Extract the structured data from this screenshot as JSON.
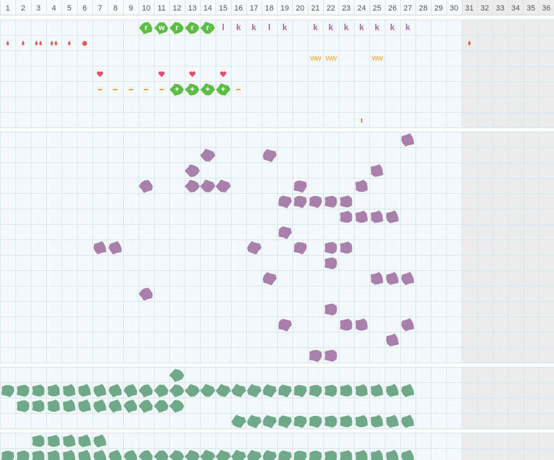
{
  "day_labels": [
    "1",
    "2",
    "3",
    "4",
    "5",
    "6",
    "7",
    "8",
    "9",
    "10",
    "11",
    "12",
    "13",
    "14",
    "15",
    "16",
    "17",
    "18",
    "19",
    "20",
    "21",
    "22",
    "23",
    "24",
    "25",
    "26",
    "27",
    "28",
    "29",
    "30",
    "31",
    "32",
    "33",
    "34",
    "35",
    "36"
  ],
  "shaded_from_day": 31,
  "sections": [
    {
      "rows": [
        {
          "cells": [
            {
              "day": 10,
              "kind": "green-tag",
              "text": "r"
            },
            {
              "day": 11,
              "kind": "green-tag",
              "text": "w"
            },
            {
              "day": 12,
              "kind": "green-tag",
              "text": "r"
            },
            {
              "day": 13,
              "kind": "green-tag",
              "text": "r"
            },
            {
              "day": 14,
              "kind": "green-tag",
              "text": "r"
            },
            {
              "day": 15,
              "kind": "purple-text",
              "text": "l"
            },
            {
              "day": 16,
              "kind": "purple-text",
              "text": "k"
            },
            {
              "day": 17,
              "kind": "purple-text",
              "text": "k"
            },
            {
              "day": 18,
              "kind": "purple-text",
              "text": "l"
            },
            {
              "day": 19,
              "kind": "purple-text",
              "text": "k"
            },
            {
              "day": 21,
              "kind": "purple-text",
              "text": "k"
            },
            {
              "day": 22,
              "kind": "purple-text",
              "text": "k"
            },
            {
              "day": 23,
              "kind": "purple-text",
              "text": "k"
            },
            {
              "day": 24,
              "kind": "purple-text",
              "text": "k"
            },
            {
              "day": 25,
              "kind": "purple-text",
              "text": "k"
            },
            {
              "day": 26,
              "kind": "purple-text",
              "text": "k"
            },
            {
              "day": 27,
              "kind": "purple-text",
              "text": "k"
            }
          ]
        },
        {
          "cells": [
            {
              "day": 1,
              "kind": "drop"
            },
            {
              "day": 2,
              "kind": "drop"
            },
            {
              "day": 3,
              "kind": "drops"
            },
            {
              "day": 4,
              "kind": "drops"
            },
            {
              "day": 5,
              "kind": "drop"
            },
            {
              "day": 6,
              "kind": "spot"
            },
            {
              "day": 31,
              "kind": "drop"
            }
          ]
        },
        {
          "cells": [
            {
              "day": 21,
              "kind": "orange-text",
              "text": "WW"
            },
            {
              "day": 22,
              "kind": "orange-text",
              "text": "WW"
            },
            {
              "day": 25,
              "kind": "orange-text",
              "text": "WW"
            }
          ]
        },
        {
          "cells": [
            {
              "day": 7,
              "kind": "heart"
            },
            {
              "day": 11,
              "kind": "heart"
            },
            {
              "day": 13,
              "kind": "heart"
            },
            {
              "day": 15,
              "kind": "heart"
            }
          ]
        },
        {
          "cells": [
            {
              "day": 7,
              "kind": "dash"
            },
            {
              "day": 8,
              "kind": "dash"
            },
            {
              "day": 9,
              "kind": "dash"
            },
            {
              "day": 10,
              "kind": "dash"
            },
            {
              "day": 11,
              "kind": "dash"
            },
            {
              "day": 12,
              "kind": "green-tag",
              "text": "+"
            },
            {
              "day": 13,
              "kind": "green-tag",
              "text": "+"
            },
            {
              "day": 14,
              "kind": "green-tag",
              "text": "+"
            },
            {
              "day": 15,
              "kind": "green-tag",
              "text": "+"
            },
            {
              "day": 16,
              "kind": "dash"
            }
          ]
        },
        {
          "cells": []
        },
        {
          "cells": [
            {
              "day": 24,
              "kind": "bar"
            }
          ]
        }
      ]
    },
    {
      "blob": "#a97fab",
      "rows": [
        {
          "days": [
            27
          ]
        },
        {
          "days": [
            14,
            18
          ]
        },
        {
          "days": [
            13,
            25
          ]
        },
        {
          "days": [
            10,
            13,
            14,
            15,
            20,
            24
          ]
        },
        {
          "days": [
            19,
            20,
            21,
            22,
            23
          ]
        },
        {
          "days": [
            23,
            24,
            25,
            26
          ]
        },
        {
          "days": [
            19
          ]
        },
        {
          "days": [
            7,
            8,
            17,
            20,
            22,
            23
          ]
        },
        {
          "days": [
            22
          ]
        },
        {
          "days": [
            18,
            25,
            26,
            27
          ]
        },
        {
          "days": [
            10
          ]
        },
        {
          "days": [
            22
          ]
        },
        {
          "days": [
            19,
            23,
            24,
            27
          ]
        },
        {
          "days": [
            26
          ]
        },
        {
          "days": [
            21,
            22
          ]
        }
      ]
    },
    {
      "blob": "#6fa98a",
      "rows": [
        {
          "days": [
            12
          ]
        },
        {
          "days": [
            1,
            2,
            3,
            4,
            5,
            6,
            7,
            8,
            9,
            10,
            11,
            12,
            13,
            14,
            15,
            16,
            17,
            18,
            19,
            20,
            21,
            22,
            23,
            24,
            25,
            26,
            27
          ]
        },
        {
          "days": [
            2,
            3,
            4,
            5,
            6,
            7,
            8,
            9,
            10,
            11,
            12
          ]
        },
        {
          "days": [
            16,
            17,
            18,
            19,
            20,
            21,
            22,
            23,
            24,
            25,
            26,
            27
          ]
        }
      ]
    },
    {
      "blob": "#6fa98a",
      "rows": [
        {
          "days": [
            3,
            4,
            5,
            6,
            7
          ]
        },
        {
          "days": [
            1,
            2,
            3,
            4,
            5,
            6,
            7,
            8,
            9,
            10,
            11,
            12,
            13,
            14,
            15,
            16,
            17,
            18,
            19,
            20,
            21,
            22,
            23,
            24,
            25,
            26,
            27
          ]
        }
      ]
    }
  ]
}
